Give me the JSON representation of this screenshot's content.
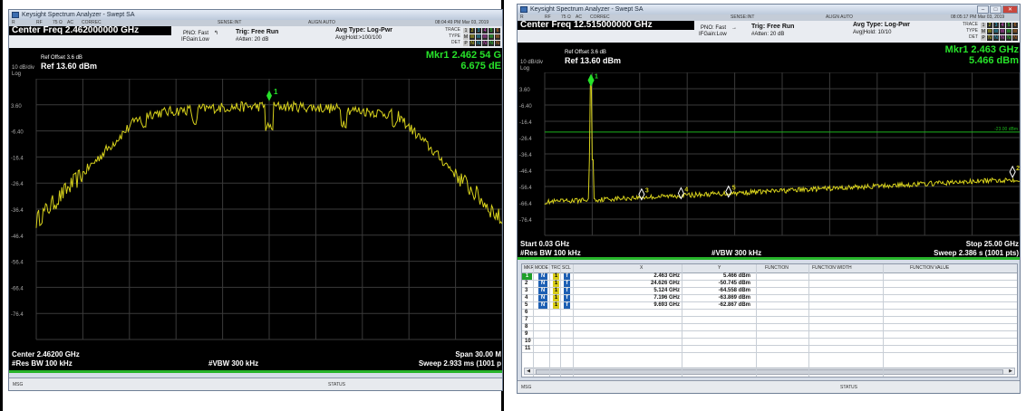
{
  "left": {
    "window_title": "Keysight Spectrum Analyzer - Swept SA",
    "statusrow": {
      "r": "R",
      "rf": "RF",
      "ohm": "75 Ω",
      "ac": "AC",
      "correc": "CORREC",
      "sense": "SENSE:INT",
      "align": "ALIGN AUTO",
      "time": "08:04:49 PM Mar 03, 2019"
    },
    "center_freq": "Center Freq 2.462000000 GHz",
    "pno": "PNO: Fast",
    "ifgain": "IFGain:Low",
    "trig": "Trig: Free Run",
    "atten": "#Atten: 20 dB",
    "avg_type": "Avg Type: Log-Pwr",
    "avg_hold": "Avg|Hold:>100/100",
    "trace_label": "TRACE",
    "type_label": "TYPE",
    "det_label": "DET",
    "trace_boxes": [
      "1",
      "2",
      "3",
      "4",
      "5",
      "6"
    ],
    "type_boxes": [
      "M",
      "W",
      "W",
      "W",
      "W",
      "W"
    ],
    "det_boxes": [
      "P",
      "N",
      "N",
      "N",
      "N",
      "N"
    ],
    "ref_offset": "Ref Offset 3.6 dB",
    "ref_level": "Ref 13.60 dBm",
    "scale_div": "10 dB/div",
    "scale_log": "Log",
    "mkr_freq": "Mkr1 2.462 54 G",
    "mkr_ampl": "6.675 dE",
    "y_ticks": [
      "3.60",
      "-6.40",
      "-16.4",
      "-26.4",
      "-36.4",
      "-46.4",
      "-56.4",
      "-66.4",
      "-76.4"
    ],
    "center": "Center 2.46200 GHz",
    "span": "Span 30.00 M",
    "rbw": "#Res BW 100 kHz",
    "vbw": "#VBW 300 kHz",
    "sweep": "Sweep  2.933 ms (1001 p",
    "msg": "MSG",
    "status": "STATUS",
    "marker_label": "1"
  },
  "right": {
    "window_title": "Keysight Spectrum Analyzer - Swept SA",
    "statusrow": {
      "r": "R",
      "rf": "RF",
      "ohm": "75 Ω",
      "ac": "AC",
      "correc": "CORREC",
      "sense": "SENSE:INT",
      "align": "ALIGN AUTO",
      "time": "08:05:17 PM Mar 03, 2019"
    },
    "center_freq": "Center Freq 12.515000000 GHz",
    "pno": "PNO: Fast",
    "ifgain": "IFGain:Low",
    "trig": "Trig: Free Run",
    "atten": "#Atten: 20 dB",
    "avg_type": "Avg Type: Log-Pwr",
    "avg_hold": "Avg|Hold: 10/10",
    "trace_label": "TRACE",
    "type_label": "TYPE",
    "det_label": "DET",
    "trace_boxes": [
      "1",
      "2",
      "3",
      "4",
      "5",
      "6"
    ],
    "type_boxes": [
      "M",
      "W",
      "W",
      "W",
      "W",
      "W"
    ],
    "det_boxes": [
      "P",
      "N",
      "N",
      "N",
      "N",
      "N"
    ],
    "ref_offset": "Ref Offset 3.6 dB",
    "ref_level": "Ref 13.60 dBm",
    "scale_div": "10 dB/div",
    "scale_log": "Log",
    "mkr_freq": "Mkr1 2.463 GHz",
    "mkr_ampl": "5.466 dBm",
    "y_ticks": [
      "3.60",
      "-6.40",
      "-16.4",
      "-26.4",
      "-36.4",
      "-46.4",
      "-56.4",
      "-66.4",
      "-76.4"
    ],
    "limit_label": "-23.00 dBm",
    "start": "Start 0.03 GHz",
    "stop": "Stop 25.00 GHz",
    "rbw": "#Res BW 100 kHz",
    "vbw": "#VBW 300 kHz",
    "sweep": "Sweep  2.386 s (1001 pts)",
    "table_headers": [
      "MKR",
      "MODE",
      "TRC",
      "SCL",
      "X",
      "Y",
      "FUNCTION",
      "FUNCTION WIDTH",
      "FUNCTION VALUE"
    ],
    "markers": [
      {
        "n": "1",
        "mode": "N",
        "trc": "1",
        "scl": "f",
        "x": "2.463 GHz",
        "y": "5.466 dBm"
      },
      {
        "n": "2",
        "mode": "N",
        "trc": "1",
        "scl": "f",
        "x": "24.626 GHz",
        "y": "-50.745 dBm"
      },
      {
        "n": "3",
        "mode": "N",
        "trc": "1",
        "scl": "f",
        "x": "5.124 GHz",
        "y": "-64.558 dBm"
      },
      {
        "n": "4",
        "mode": "N",
        "trc": "1",
        "scl": "f",
        "x": "7.196 GHz",
        "y": "-63.869 dBm"
      },
      {
        "n": "5",
        "mode": "N",
        "trc": "1",
        "scl": "f",
        "x": "9.693 GHz",
        "y": "-62.867 dBm"
      },
      {
        "n": "6"
      },
      {
        "n": "7"
      },
      {
        "n": "8"
      },
      {
        "n": "9"
      },
      {
        "n": "10"
      },
      {
        "n": "11"
      }
    ],
    "msg": "MSG",
    "status": "STATUS",
    "marker_labels": [
      "1",
      "2",
      "3",
      "4",
      "5"
    ]
  },
  "colors": {
    "trace": "#d8d21c",
    "marker": "#27e22a",
    "limit": "#1db31d",
    "grid": "#3a3a3a"
  }
}
